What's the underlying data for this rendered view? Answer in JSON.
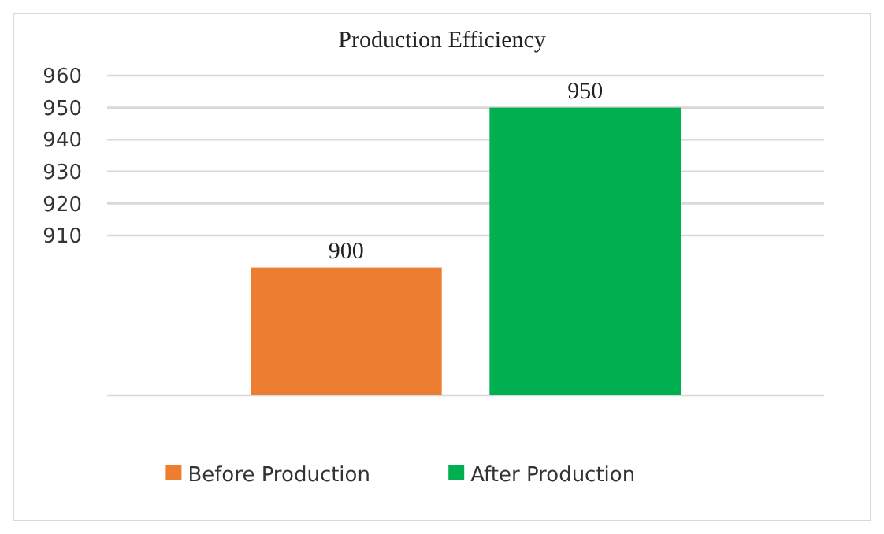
{
  "chart_data": {
    "type": "bar",
    "title": "Production Efficiency",
    "categories": [
      null,
      null
    ],
    "series": [
      {
        "name": "Before Production",
        "color": "#ed7d31",
        "values": [
          900,
          null
        ]
      },
      {
        "name": "After Production",
        "color": "#00b050",
        "values": [
          null,
          950
        ]
      }
    ],
    "ylim": [
      860,
      960
    ],
    "yticks": [
      910,
      920,
      930,
      940,
      950,
      960
    ],
    "grid": "y",
    "data_labels": true,
    "legend": "bottom"
  }
}
